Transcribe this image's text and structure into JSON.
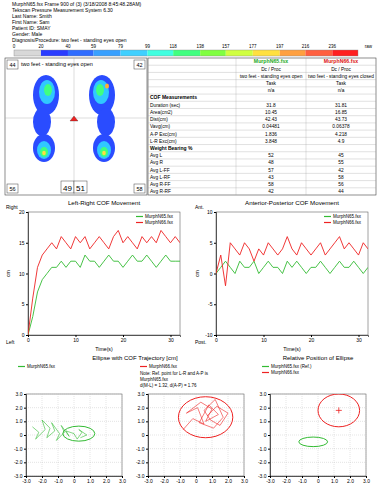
{
  "header": {
    "lines": [
      "MurphN65.fsx Frame 900 of (3) (3/18/2008 8:45:48.28AM)",
      "Tekscan Pressure Measurement System 6.30",
      "Last Name: Smith",
      "First Name: Sam",
      "Patient ID: SMAY",
      "Gender: Male",
      "Diagnosis/Procedure: two feet - standing eyes open"
    ]
  },
  "color_bar": {
    "range": [
      0,
      255
    ],
    "ticks": [
      0,
      20,
      40,
      59,
      79,
      99,
      118,
      138,
      157,
      177,
      197,
      216,
      236
    ],
    "unit": "raw"
  },
  "pressure_map": {
    "title": "two feet - standing eyes open",
    "top_left": 44,
    "top_right": 42,
    "bottom_left": 56,
    "bottom_right": 58,
    "left_percent": 49,
    "right_percent": 51
  },
  "table": {
    "columns": [
      "MurphN65.fsx",
      "MurphN66.fsx"
    ],
    "column_colors": [
      "#22aa22",
      "#dd1111"
    ],
    "info_rows": [
      [
        "Dc / Proc",
        "Dc / Proc"
      ],
      [
        "two feet - standing eyes open",
        "two feet - standing eyes closed"
      ],
      [
        "Task",
        "Task"
      ],
      [
        "n/a",
        "n/a"
      ]
    ],
    "sections": [
      {
        "title": "COF Measurements",
        "rows": [
          {
            "label": "Duration (sec)",
            "values": [
              31.8,
              31.81
            ]
          },
          {
            "label": "Area(cm2)",
            "values": [
              10.45,
              16.85
            ]
          },
          {
            "label": "Dist(cm)",
            "values": [
              42.43,
              43.73
            ]
          },
          {
            "label": "Vavg(cm)",
            "values": [
              0.04481,
              0.06378
            ]
          },
          {
            "label": "A-P Exc(cm)",
            "values": [
              1.836,
              4.218
            ]
          },
          {
            "label": "L-R Exc(cm)",
            "values": [
              3.848,
              4.9
            ]
          }
        ]
      },
      {
        "title": "Weight Bearing %",
        "rows": [
          {
            "label": "Avg L",
            "values": [
              52,
              45
            ]
          },
          {
            "label": "Avg R",
            "values": [
              48,
              55
            ]
          },
          {
            "label": "Avg L-FF",
            "values": [
              57,
              42
            ]
          },
          {
            "label": "Avg L-RF",
            "values": [
              43,
              58
            ]
          },
          {
            "label": "Avg R-FF",
            "values": [
              58,
              56
            ]
          },
          {
            "label": "Avg R-RF",
            "values": [
              42,
              44
            ]
          }
        ]
      }
    ]
  },
  "chart_data": [
    {
      "type": "line",
      "title": "Left-Right COF Movement",
      "x_label": "Time(s)",
      "y_label": "cm",
      "y_top_label": "Right",
      "y_bottom_label": "Left",
      "x": [
        0,
        1,
        2,
        3,
        4,
        5,
        6,
        7,
        8,
        9,
        10,
        11,
        12,
        13,
        14,
        15,
        16,
        17,
        18,
        19,
        20,
        21,
        22,
        23,
        24,
        25,
        26,
        27,
        28,
        29,
        30,
        31,
        32
      ],
      "xlim": [
        0,
        32
      ],
      "xticks": [
        0,
        10,
        20,
        30
      ],
      "ylim": [
        0,
        20
      ],
      "yticks": [
        0,
        5,
        10,
        15,
        20
      ],
      "legend": "top-right",
      "series": [
        {
          "name": "MurphN65.fsx",
          "color": "#33bb33",
          "values": [
            0,
            3,
            7,
            9,
            10,
            11,
            11,
            12,
            11,
            12,
            12,
            11,
            13,
            12,
            12,
            11,
            12,
            13,
            12,
            12,
            11,
            12,
            13,
            12,
            12,
            13,
            12,
            11,
            12,
            13,
            12,
            12,
            12
          ]
        },
        {
          "name": "MurphN66.fsx",
          "color": "#ee2222",
          "values": [
            0,
            6,
            11,
            13,
            14,
            15,
            14,
            16,
            15,
            14,
            16,
            15,
            16,
            14,
            15,
            16,
            15,
            14,
            16,
            17,
            15,
            16,
            15,
            14,
            16,
            15,
            16,
            15,
            17,
            16,
            15,
            16,
            15
          ]
        }
      ]
    },
    {
      "type": "line",
      "title": "Anterior-Posterior COF Movement",
      "x_label": "Time(s)",
      "y_label": "cm",
      "y_top_label": "Ant.",
      "y_bottom_label": "Post.",
      "x": [
        0,
        1,
        2,
        3,
        4,
        5,
        6,
        7,
        8,
        9,
        10,
        11,
        12,
        13,
        14,
        15,
        16,
        17,
        18,
        19,
        20,
        21,
        22,
        23,
        24,
        25,
        26,
        27,
        28,
        29,
        30,
        31,
        32
      ],
      "xlim": [
        0,
        32
      ],
      "xticks": [
        0,
        10,
        20,
        30
      ],
      "ylim": [
        -10,
        10
      ],
      "yticks": [
        -10,
        -5,
        0,
        5,
        10
      ],
      "legend": "top-right",
      "series": [
        {
          "name": "MurphN65.fsx",
          "color": "#33bb33",
          "values": [
            0,
            1,
            2,
            1,
            0,
            2,
            1,
            1,
            2,
            0,
            1,
            2,
            1,
            1,
            0,
            2,
            1,
            2,
            1,
            0,
            1,
            1,
            2,
            1,
            0,
            1,
            2,
            1,
            1,
            2,
            1,
            0,
            1
          ]
        },
        {
          "name": "MurphN66.fsx",
          "color": "#ee2222",
          "values": [
            0,
            3,
            -2,
            5,
            4,
            3,
            5,
            4,
            2,
            4,
            3,
            5,
            4,
            3,
            4,
            6,
            4,
            3,
            5,
            4,
            3,
            4,
            5,
            3,
            4,
            5,
            6,
            4,
            5,
            4,
            3,
            5,
            4
          ]
        }
      ]
    },
    {
      "type": "ellipse",
      "title": "Ellipse with COF Trajectory [cm]",
      "xlim": [
        -3,
        3
      ],
      "ylim": [
        -3,
        3
      ],
      "xticks": [
        {
          "value": -3,
          "label": "-3.0"
        },
        {
          "value": -2,
          "label": "-2.0"
        },
        {
          "value": -1,
          "label": "-1.0"
        },
        0,
        {
          "value": 1,
          "label": "1.0"
        },
        {
          "value": 2,
          "label": "2.0"
        },
        {
          "value": 3,
          "label": "3.0"
        }
      ],
      "yticks": [
        {
          "value": -3,
          "label": "-3.0"
        },
        {
          "value": -2,
          "label": "-2.0"
        },
        {
          "value": -1,
          "label": "-1.0"
        },
        0,
        {
          "value": 1,
          "label": "1.0"
        },
        {
          "value": 2,
          "label": "2.0"
        },
        {
          "value": 3,
          "label": "3.0"
        }
      ],
      "grid": true,
      "legend": "top-left",
      "series": [
        {
          "name": "MurphN65.fsx",
          "color": "#33bb33",
          "x": [
            -2.6,
            -2.2,
            -2.4,
            -1.8,
            -2.0,
            -1.5,
            -1.7,
            -1.2,
            -1.4,
            -0.9,
            -1.1,
            -0.6,
            -0.8,
            -0.3,
            -0.5,
            0.0,
            0.2,
            0.5,
            0.3,
            0.8,
            0.4
          ],
          "values": [
            0.6,
            0.2,
            -0.3,
            0.4,
            1.1,
            0.5,
            -0.2,
            0.3,
            0.9,
            0.1,
            -0.4,
            0.2,
            0.7,
            -0.1,
            0.3,
            0.1,
            -0.3,
            0.2,
            0.4,
            0.0,
            -0.2
          ],
          "ellipse": {
            "cx": 0.3,
            "cy": 0.1,
            "rx": 1.0,
            "ry": 0.55
          }
        }
      ]
    },
    {
      "type": "ellipse",
      "note": [
        "Note: Ref. point for L-R and A-P is",
        "MurphN65.fsx",
        "d(M-L) = 1.32, d(A-P) = 1.76"
      ],
      "xlim": [
        -3,
        3
      ],
      "ylim": [
        -3,
        3
      ],
      "xticks": [
        {
          "value": -3,
          "label": "-3.0"
        },
        {
          "value": -2,
          "label": "-2.0"
        },
        {
          "value": -1,
          "label": "-1.0"
        },
        0,
        {
          "value": 1,
          "label": "1.0"
        },
        {
          "value": 2,
          "label": "2.0"
        },
        {
          "value": 3,
          "label": "3.0"
        }
      ],
      "yticks": [
        {
          "value": -3,
          "label": "-3.0"
        },
        {
          "value": -2,
          "label": "-2.0"
        },
        {
          "value": -1,
          "label": "-1.0"
        },
        0,
        {
          "value": 1,
          "label": "1.0"
        },
        {
          "value": 2,
          "label": "2.0"
        },
        {
          "value": 3,
          "label": "3.0"
        }
      ],
      "grid": true,
      "legend": "top-left",
      "series": [
        {
          "name": "MurphN66.fsx",
          "color": "#ee2222",
          "x": [
            -0.8,
            -0.2,
            0.5,
            0.1,
            -0.6,
            0.3,
            1.0,
            0.6,
            1.4,
            0.8,
            0.2,
            1.1,
            1.7,
            1.2,
            0.5,
            0.9,
            1.5,
            2.0,
            1.3,
            0.7
          ],
          "values": [
            0.4,
            1.2,
            0.8,
            2.0,
            1.6,
            2.4,
            1.9,
            1.0,
            1.5,
            2.2,
            0.9,
            0.5,
            1.3,
            2.6,
            1.8,
            1.1,
            0.7,
            1.6,
            2.1,
            1.4
          ],
          "ellipse": {
            "cx": 0.6,
            "cy": 1.3,
            "rx": 1.7,
            "ry": 1.5
          }
        }
      ]
    },
    {
      "type": "ellipse",
      "title": "Relative Position of Ellipse",
      "xlim": [
        -3,
        3
      ],
      "ylim": [
        -3,
        3
      ],
      "xticks": [
        {
          "value": -3,
          "label": "-3.0"
        },
        {
          "value": -2,
          "label": "-2.0"
        },
        {
          "value": -1,
          "label": "-1.0"
        },
        0,
        {
          "value": 1,
          "label": "1.0"
        },
        {
          "value": 2,
          "label": "2.0"
        },
        {
          "value": 3,
          "label": "3.0"
        }
      ],
      "yticks": [
        {
          "value": -3,
          "label": "-3.0"
        },
        {
          "value": -2,
          "label": "-2.0"
        },
        {
          "value": -1,
          "label": "-1.0"
        },
        0,
        {
          "value": 1,
          "label": "1.0"
        },
        {
          "value": 2,
          "label": "2.0"
        },
        {
          "value": 3,
          "label": "3.0"
        }
      ],
      "grid": true,
      "legend": "top-left",
      "series": [
        {
          "name": "MurphN65.fsx (Ref.)",
          "color": "#33bb33",
          "ellipse": {
            "cx": -0.3,
            "cy": -0.5,
            "rx": 0.9,
            "ry": 0.35
          }
        },
        {
          "name": "MurphN66.fsx",
          "color": "#ee2222",
          "marker": "cross",
          "ellipse": {
            "cx": 1.3,
            "cy": 1.8,
            "rx": 1.3,
            "ry": 1.2
          }
        }
      ]
    }
  ]
}
